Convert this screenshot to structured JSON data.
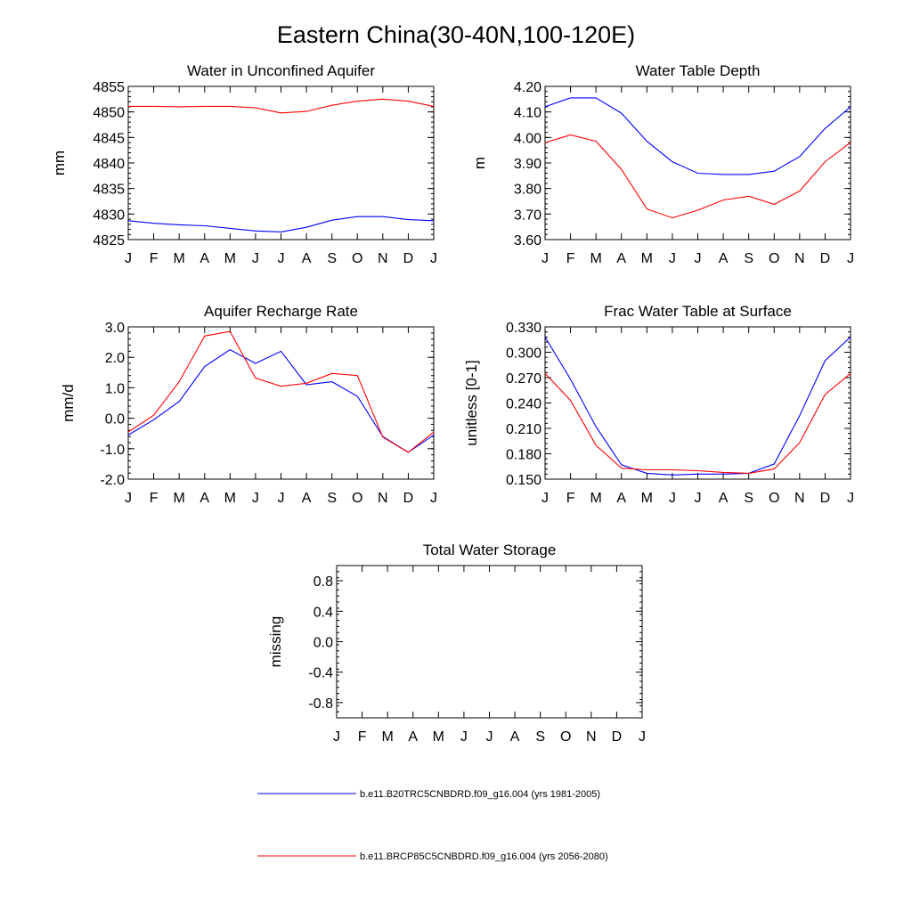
{
  "figure": {
    "title": "Eastern China(30-40N,100-120E)"
  },
  "months": [
    "J",
    "F",
    "M",
    "A",
    "M",
    "J",
    "J",
    "A",
    "S",
    "O",
    "N",
    "D",
    "J"
  ],
  "colors": {
    "series1": "#0000ff",
    "series2": "#ff0000"
  },
  "chart_data": [
    {
      "type": "line",
      "title": "Water in Unconfined Aquifer",
      "xlabel": "",
      "ylabel": "mm",
      "ylim": [
        4825,
        4855
      ],
      "yticks": [
        4825,
        4830,
        4835,
        4840,
        4845,
        4850,
        4855
      ],
      "ytick_labels": [
        "4825",
        "4830",
        "4835",
        "4840",
        "4845",
        "4850",
        "4855"
      ],
      "grid": false,
      "series": [
        {
          "color": "#0000ff",
          "values": [
            4828.7,
            4828.2,
            4827.9,
            4827.7,
            4827.2,
            4826.7,
            4826.5,
            4827.4,
            4828.8,
            4829.5,
            4829.5,
            4828.9,
            4828.7
          ]
        },
        {
          "color": "#ff0000",
          "values": [
            4851.1,
            4851.1,
            4851.0,
            4851.1,
            4851.1,
            4850.8,
            4849.8,
            4850.1,
            4851.3,
            4852.1,
            4852.5,
            4852.1,
            4851.1
          ]
        }
      ]
    },
    {
      "type": "line",
      "title": "Water Table Depth",
      "xlabel": "",
      "ylabel": "m",
      "ylim": [
        3.6,
        4.2
      ],
      "yticks": [
        3.6,
        3.7,
        3.8,
        3.9,
        4.0,
        4.1,
        4.2
      ],
      "ytick_labels": [
        "3.60",
        "3.70",
        "3.80",
        "3.90",
        "4.00",
        "4.10",
        "4.20"
      ],
      "grid": false,
      "series": [
        {
          "color": "#0000ff",
          "values": [
            4.12,
            4.155,
            4.155,
            4.095,
            3.985,
            3.905,
            3.86,
            3.855,
            3.855,
            3.868,
            3.925,
            4.035,
            4.12
          ]
        },
        {
          "color": "#ff0000",
          "values": [
            3.98,
            4.01,
            3.985,
            3.875,
            3.72,
            3.685,
            3.715,
            3.755,
            3.77,
            3.738,
            3.79,
            3.905,
            3.98
          ]
        }
      ]
    },
    {
      "type": "line",
      "title": "Aquifer Recharge Rate",
      "xlabel": "",
      "ylabel": "mm/d",
      "ylim": [
        -2.0,
        3.0
      ],
      "yticks": [
        -2,
        -1,
        0,
        1,
        2,
        3
      ],
      "ytick_labels": [
        "-2.0",
        "-1.0",
        "0.0",
        "1.0",
        "2.0",
        "3.0"
      ],
      "grid": false,
      "series": [
        {
          "color": "#0000ff",
          "values": [
            -0.55,
            -0.05,
            0.55,
            1.7,
            2.25,
            1.8,
            2.2,
            1.1,
            1.2,
            0.72,
            -0.6,
            -1.12,
            -0.55
          ]
        },
        {
          "color": "#ff0000",
          "values": [
            -0.45,
            0.1,
            1.2,
            2.7,
            2.85,
            1.32,
            1.05,
            1.15,
            1.47,
            1.4,
            -0.62,
            -1.12,
            -0.45
          ]
        }
      ]
    },
    {
      "type": "line",
      "title": "Frac Water Table at Surface",
      "xlabel": "",
      "ylabel": "unitless [0-1]",
      "ylim": [
        0.15,
        0.33
      ],
      "yticks": [
        0.15,
        0.18,
        0.21,
        0.24,
        0.27,
        0.3,
        0.33
      ],
      "ytick_labels": [
        "0.150",
        "0.180",
        "0.210",
        "0.240",
        "0.270",
        "0.300",
        "0.330"
      ],
      "grid": false,
      "series": [
        {
          "color": "#0000ff",
          "values": [
            0.318,
            0.268,
            0.212,
            0.167,
            0.157,
            0.155,
            0.156,
            0.156,
            0.157,
            0.168,
            0.225,
            0.29,
            0.318
          ]
        },
        {
          "color": "#ff0000",
          "values": [
            0.275,
            0.243,
            0.19,
            0.163,
            0.161,
            0.161,
            0.16,
            0.158,
            0.157,
            0.162,
            0.193,
            0.25,
            0.275
          ]
        }
      ]
    },
    {
      "type": "line",
      "title": "Total Water Storage",
      "xlabel": "",
      "ylabel": "missing",
      "ylim": [
        -1.0,
        1.0
      ],
      "yticks": [
        -0.8,
        -0.4,
        0.0,
        0.4,
        0.8
      ],
      "ytick_labels": [
        "-0.8",
        "-0.4",
        "0.0",
        "0.4",
        "0.8"
      ],
      "grid": false,
      "series": []
    }
  ],
  "legend": {
    "placement": "bottom",
    "entries": [
      {
        "label": "b.e11.B20TRC5CNBDRD.f09_g16.004 (yrs 1981-2005)",
        "color": "#0000ff"
      },
      {
        "label": "b.e11.BRCP85C5CNBDRD.f09_g16.004 (yrs 2056-2080)",
        "color": "#ff0000"
      }
    ]
  }
}
